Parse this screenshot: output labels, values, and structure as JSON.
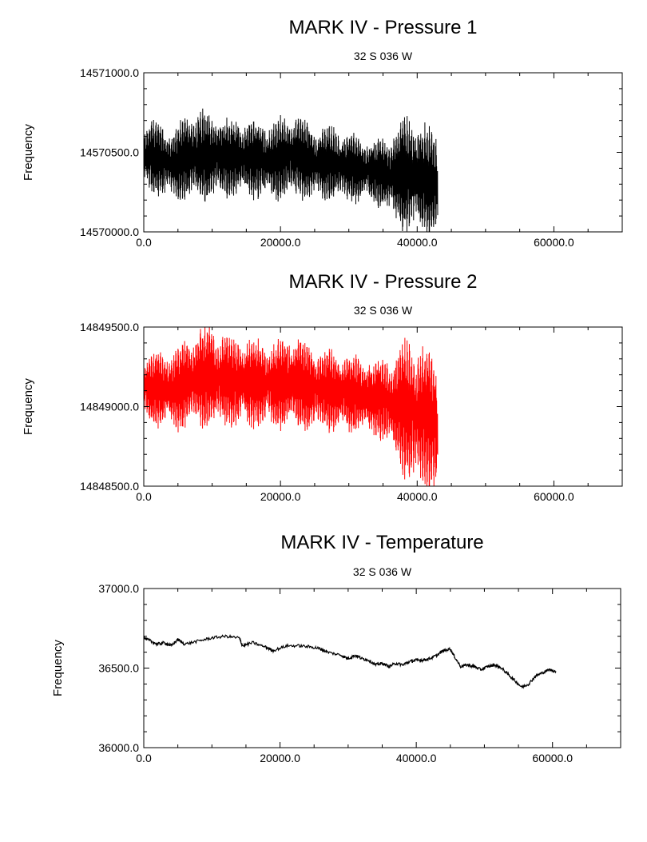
{
  "chart_data": [
    {
      "type": "line",
      "title": "MARK IV - Pressure 1",
      "subtitle": "32 S 036 W",
      "xlabel": "",
      "ylabel": "Frequency",
      "xlim": [
        0,
        70000
      ],
      "ylim": [
        14570000,
        14571000
      ],
      "xticks": [
        "0.0",
        "20000.0",
        "40000.0",
        "60000.0"
      ],
      "yticks": [
        "14570000.0",
        "14570500.0",
        "14571000.0"
      ],
      "grid": false,
      "color": "#000000",
      "render": "band",
      "envelope": {
        "x": [
          0,
          1000,
          3000,
          5000,
          7000,
          10000,
          13000,
          16000,
          19000,
          22000,
          25000,
          28000,
          31000,
          34000,
          36000,
          38000,
          39500,
          41000,
          42000,
          43000
        ],
        "upper": [
          14570650,
          14570700,
          14570650,
          14570650,
          14570750,
          14570730,
          14570700,
          14570680,
          14570680,
          14570740,
          14570650,
          14570640,
          14570600,
          14570560,
          14570600,
          14570700,
          14570720,
          14570650,
          14570620,
          14570600
        ],
        "lower": [
          14570300,
          14570260,
          14570230,
          14570210,
          14570200,
          14570220,
          14570230,
          14570230,
          14570220,
          14570220,
          14570210,
          14570210,
          14570200,
          14570190,
          14570100,
          14570030,
          14570000,
          14570020,
          14570000,
          14570000
        ]
      }
    },
    {
      "type": "line",
      "title": "MARK IV - Pressure 2",
      "subtitle": "32 S 036 W",
      "xlabel": "",
      "ylabel": "Frequency",
      "xlim": [
        0,
        70000
      ],
      "ylim": [
        14848500,
        14849500
      ],
      "xticks": [
        "0.0",
        "20000.0",
        "40000.0",
        "60000.0"
      ],
      "yticks": [
        "14848500.0",
        "14849000.0",
        "14849500.0"
      ],
      "grid": false,
      "color": "#ff0000",
      "render": "band",
      "envelope": {
        "x": [
          0,
          1000,
          3000,
          5000,
          7000,
          10000,
          13000,
          16000,
          19000,
          22000,
          25000,
          28000,
          31000,
          34000,
          36000,
          38000,
          39500,
          41000,
          42000,
          43000
        ],
        "upper": [
          14849300,
          14849330,
          14849330,
          14849350,
          14849480,
          14849480,
          14849420,
          14849400,
          14849380,
          14849440,
          14849350,
          14849340,
          14849300,
          14849280,
          14849300,
          14849380,
          14849400,
          14849350,
          14849320,
          14849200
        ],
        "lower": [
          14848950,
          14848900,
          14848880,
          14848870,
          14848870,
          14848880,
          14848890,
          14848890,
          14848880,
          14848870,
          14848860,
          14848860,
          14848850,
          14848830,
          14848750,
          14848600,
          14848500,
          14848550,
          14848500,
          14848500
        ]
      }
    },
    {
      "type": "line",
      "title": "MARK IV - Temperature",
      "subtitle": "32 S 036 W",
      "xlabel": "",
      "ylabel": "Frequency",
      "xlim": [
        0,
        70000
      ],
      "ylim": [
        36000,
        37000
      ],
      "xticks": [
        "0.0",
        "20000.0",
        "40000.0",
        "60000.0"
      ],
      "yticks": [
        "36000.0",
        "36500.0",
        "37000.0"
      ],
      "grid": false,
      "color": "#000000",
      "render": "line",
      "x": [
        0,
        1000,
        2000,
        3000,
        4000,
        5000,
        6000,
        8000,
        10000,
        12000,
        14000,
        14500,
        16000,
        18000,
        19000,
        21000,
        23000,
        25000,
        26000,
        27000,
        29000,
        30000,
        31000,
        32000,
        33000,
        34000,
        35000,
        36000,
        37000,
        38000,
        39000,
        40000,
        41000,
        42000,
        43000,
        44000,
        45000,
        45500,
        46500,
        47500,
        48500,
        49500,
        50500,
        51500,
        52500,
        53500,
        54500,
        55500,
        56500,
        57500,
        58500,
        59500,
        60500
      ],
      "y": [
        36690,
        36670,
        36650,
        36660,
        36640,
        36680,
        36650,
        36670,
        36690,
        36700,
        36690,
        36640,
        36660,
        36630,
        36610,
        36640,
        36640,
        36630,
        36620,
        36600,
        36580,
        36560,
        36580,
        36560,
        36550,
        36520,
        36530,
        36510,
        36530,
        36520,
        36540,
        36550,
        36550,
        36560,
        36580,
        36610,
        36620,
        36580,
        36510,
        36520,
        36510,
        36490,
        36510,
        36520,
        36500,
        36460,
        36420,
        36380,
        36400,
        36450,
        36470,
        36490,
        36480
      ]
    }
  ]
}
